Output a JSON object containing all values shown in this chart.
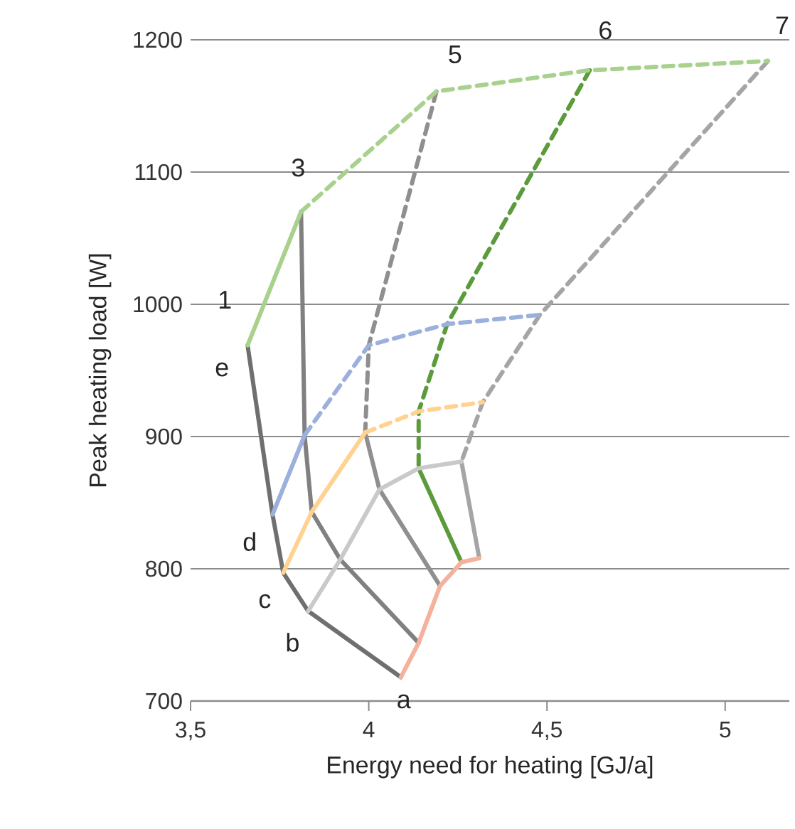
{
  "chart_data": {
    "type": "line",
    "xlabel": "Energy need for heating [GJ/a]",
    "ylabel": "Peak heating load [W]",
    "xlim": [
      3.5,
      5.18
    ],
    "ylim": [
      700,
      1200
    ],
    "xticks": [
      {
        "value": 3.5,
        "label": "3,5"
      },
      4,
      {
        "value": 4.5,
        "label": "4,5"
      },
      5
    ],
    "yticks": [
      700,
      800,
      900,
      1000,
      1100,
      1200
    ],
    "grid": "y",
    "series": [
      {
        "color": "#6f6f6f",
        "x": [
          3.66,
          3.73,
          3.76,
          3.83,
          4.09
        ],
        "values": [
          969,
          841,
          797,
          768,
          718
        ]
      },
      {
        "color": "#808080",
        "x": [
          3.81,
          3.82,
          3.84,
          3.92,
          4.14
        ],
        "values": [
          1070,
          901,
          843,
          807,
          744
        ]
      },
      {
        "color": "#8f8f8f",
        "line_style": "dashed",
        "x": [
          4.19,
          4.0,
          3.99
        ],
        "values": [
          1161,
          969,
          903
        ]
      },
      {
        "color": "#8f8f8f",
        "x": [
          3.99,
          4.03,
          4.2
        ],
        "values": [
          903,
          860,
          787
        ]
      },
      {
        "color": "#5b9b3c",
        "line_style": "dashed",
        "x": [
          4.62,
          4.22,
          4.14,
          4.14
        ],
        "values": [
          1177,
          985,
          919,
          876
        ]
      },
      {
        "color": "#5b9b3c",
        "x": [
          4.14,
          4.26
        ],
        "values": [
          876,
          805
        ]
      },
      {
        "color": "#a5a5a5",
        "line_style": "dashed",
        "x": [
          5.12,
          4.48,
          4.32,
          4.26
        ],
        "values": [
          1184,
          992,
          926,
          881
        ]
      },
      {
        "color": "#a5a5a5",
        "x": [
          4.26,
          4.31
        ],
        "values": [
          881,
          808
        ]
      },
      {
        "color": "#a9d18e",
        "x": [
          3.66,
          3.81
        ],
        "values": [
          969,
          1070
        ]
      },
      {
        "color": "#a9d18e",
        "line_style": "dashed",
        "x": [
          3.81,
          4.19,
          4.62,
          5.12
        ],
        "values": [
          1070,
          1161,
          1177,
          1184
        ]
      },
      {
        "color": "#9cb0dd",
        "x": [
          3.73,
          3.82
        ],
        "values": [
          841,
          901
        ]
      },
      {
        "color": "#9cb0dd",
        "line_style": "dashed",
        "x": [
          3.82,
          4.0,
          4.22,
          4.48
        ],
        "values": [
          901,
          969,
          985,
          992
        ]
      },
      {
        "color": "#ffd291",
        "x": [
          3.76,
          3.84,
          3.99
        ],
        "values": [
          797,
          843,
          903
        ]
      },
      {
        "color": "#ffd291",
        "line_style": "dashed",
        "x": [
          3.99,
          4.14,
          4.32
        ],
        "values": [
          903,
          919,
          926
        ]
      },
      {
        "color": "#c9c9c9",
        "x": [
          3.83,
          3.92,
          4.03,
          4.14,
          4.26
        ],
        "values": [
          768,
          807,
          860,
          876,
          881
        ]
      },
      {
        "color": "#f4b19c",
        "x": [
          4.09,
          4.14,
          4.2,
          4.26,
          4.31
        ],
        "values": [
          718,
          744,
          787,
          805,
          808
        ]
      }
    ],
    "annotations": [
      {
        "text": "1",
        "x": 3.66,
        "y": 969
      },
      {
        "text": "3",
        "x": 3.81,
        "y": 1070
      },
      {
        "text": "5",
        "x": 4.19,
        "y": 1161
      },
      {
        "text": "6",
        "x": 4.62,
        "y": 1177
      },
      {
        "text": "7",
        "x": 5.12,
        "y": 1184
      },
      {
        "text": "e",
        "x": 3.66,
        "y": 969
      },
      {
        "text": "d",
        "x": 3.73,
        "y": 841
      },
      {
        "text": "c",
        "x": 3.76,
        "y": 797
      },
      {
        "text": "b",
        "x": 3.83,
        "y": 768
      },
      {
        "text": "a",
        "x": 4.09,
        "y": 718
      }
    ]
  }
}
